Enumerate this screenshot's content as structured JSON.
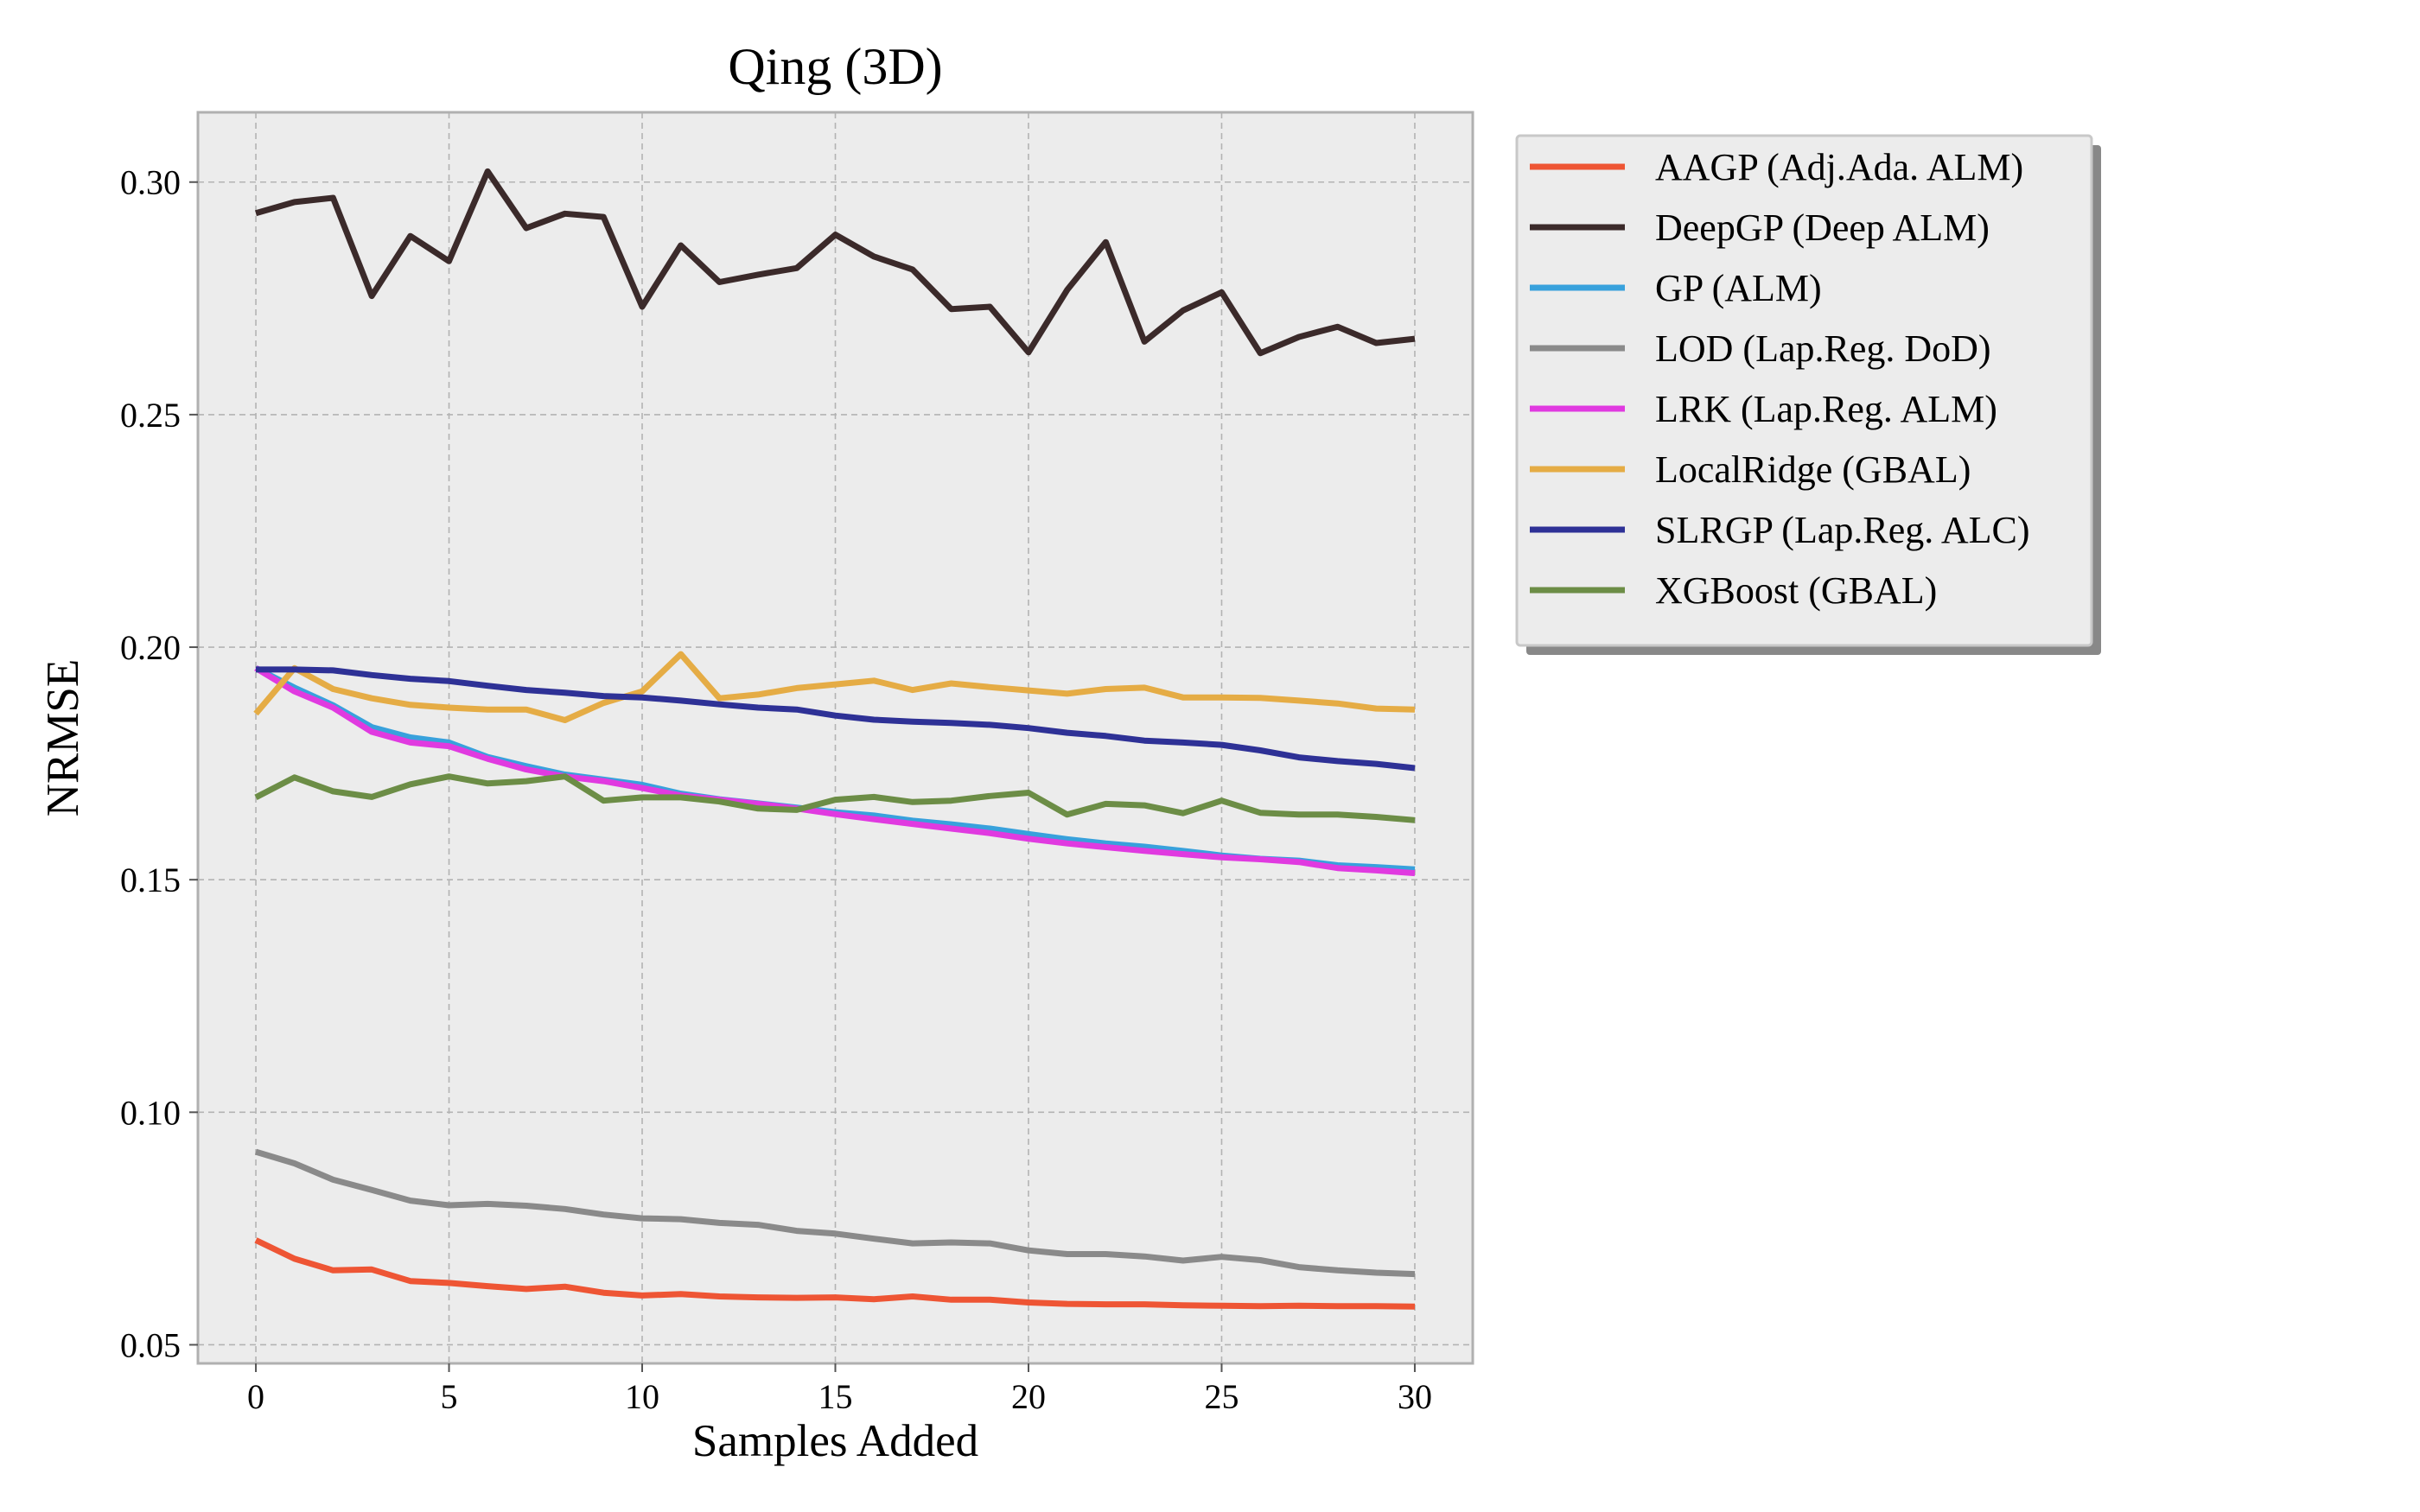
{
  "chart_data": {
    "type": "line",
    "title": "Qing (3D)",
    "xlabel": "Samples Added",
    "ylabel": "NRMSE",
    "xlim": [
      -1.5,
      31.5
    ],
    "ylim": [
      0.046,
      0.315
    ],
    "xticks": [
      0,
      5,
      10,
      15,
      20,
      25,
      30
    ],
    "yticks": [
      0.05,
      0.1,
      0.15,
      0.2,
      0.25,
      0.3
    ],
    "xtick_labels": [
      "0",
      "5",
      "10",
      "15",
      "20",
      "25",
      "30"
    ],
    "ytick_labels": [
      "0.05",
      "0.10",
      "0.15",
      "0.20",
      "0.25",
      "0.30"
    ],
    "grid": true,
    "legend_position": "outside-right-top",
    "x": [
      0,
      1,
      2,
      3,
      4,
      5,
      6,
      7,
      8,
      9,
      10,
      11,
      12,
      13,
      14,
      15,
      16,
      17,
      18,
      19,
      20,
      21,
      22,
      23,
      24,
      25,
      26,
      27,
      28,
      29,
      30
    ],
    "series": [
      {
        "name": "AAGP (Adj.Ada. ALM)",
        "color": "#ee5534",
        "values": [
          0.0725,
          0.0685,
          0.066,
          0.0662,
          0.0637,
          0.0633,
          0.0626,
          0.062,
          0.0625,
          0.0612,
          0.0606,
          0.0609,
          0.0604,
          0.0602,
          0.0601,
          0.0602,
          0.0598,
          0.0604,
          0.0597,
          0.0597,
          0.0591,
          0.0588,
          0.0587,
          0.0587,
          0.0585,
          0.0584,
          0.0583,
          0.0584,
          0.0583,
          0.0583,
          0.0582
        ]
      },
      {
        "name": "DeepGP (Deep ALM)",
        "color": "#3b2a2a",
        "values": [
          0.2933,
          0.2957,
          0.2966,
          0.2755,
          0.2884,
          0.283,
          0.3023,
          0.2901,
          0.2932,
          0.2925,
          0.2732,
          0.2864,
          0.2785,
          0.2801,
          0.2815,
          0.2887,
          0.284,
          0.2812,
          0.2727,
          0.2732,
          0.2634,
          0.2768,
          0.2871,
          0.2657,
          0.2724,
          0.2763,
          0.2632,
          0.2667,
          0.2689,
          0.2654,
          0.2663
        ]
      },
      {
        "name": "GP (ALM)",
        "color": "#38a1dc",
        "values": [
          0.1955,
          0.1913,
          0.1875,
          0.1828,
          0.1806,
          0.1795,
          0.1764,
          0.1744,
          0.1726,
          0.1715,
          0.1704,
          0.1685,
          0.1673,
          0.1664,
          0.1655,
          0.1645,
          0.1638,
          0.1627,
          0.1619,
          0.161,
          0.1598,
          0.1587,
          0.1578,
          0.1571,
          0.1562,
          0.1552,
          0.1545,
          0.1541,
          0.1531,
          0.1527,
          0.1522
        ]
      },
      {
        "name": "LOD (Lap.Reg. DoD)",
        "color": "#8a8a8a",
        "values": [
          0.0915,
          0.089,
          0.0855,
          0.0833,
          0.081,
          0.08,
          0.0803,
          0.0799,
          0.0792,
          0.078,
          0.0772,
          0.077,
          0.0762,
          0.0758,
          0.0745,
          0.0739,
          0.0728,
          0.0718,
          0.072,
          0.0718,
          0.0703,
          0.0695,
          0.0695,
          0.069,
          0.0681,
          0.0689,
          0.0682,
          0.0667,
          0.066,
          0.0655,
          0.0652
        ]
      },
      {
        "name": "LRK (Lap.Reg. ALM)",
        "color": "#e03ae0",
        "values": [
          0.1955,
          0.1905,
          0.187,
          0.1818,
          0.1795,
          0.1787,
          0.176,
          0.1737,
          0.1722,
          0.1712,
          0.1697,
          0.1681,
          0.1672,
          0.1663,
          0.1653,
          0.1641,
          0.163,
          0.162,
          0.161,
          0.16,
          0.1588,
          0.1578,
          0.157,
          0.1562,
          0.1555,
          0.1548,
          0.1544,
          0.1538,
          0.1525,
          0.152,
          0.1514
        ]
      },
      {
        "name": "LocalRidge (GBAL)",
        "color": "#e5ac45",
        "values": [
          0.1857,
          0.1955,
          0.191,
          0.189,
          0.1876,
          0.187,
          0.1866,
          0.1866,
          0.1843,
          0.188,
          0.1905,
          0.1985,
          0.189,
          0.1898,
          0.1912,
          0.192,
          0.1928,
          0.1908,
          0.1922,
          0.1914,
          0.1907,
          0.19,
          0.191,
          0.1913,
          0.1892,
          0.1892,
          0.1891,
          0.1885,
          0.1879,
          0.1868,
          0.1866
        ]
      },
      {
        "name": "SLRGP (Lap.Reg. ALC)",
        "color": "#2e3196",
        "values": [
          0.1952,
          0.1952,
          0.195,
          0.194,
          0.1932,
          0.1927,
          0.1917,
          0.1908,
          0.1902,
          0.1895,
          0.1892,
          0.1885,
          0.1877,
          0.187,
          0.1866,
          0.1853,
          0.1844,
          0.184,
          0.1837,
          0.1833,
          0.1826,
          0.1816,
          0.1809,
          0.1799,
          0.1795,
          0.179,
          0.1778,
          0.1763,
          0.1755,
          0.1749,
          0.174
        ]
      },
      {
        "name": "XGBoost (GBAL)",
        "color": "#6c8d46",
        "values": [
          0.1677,
          0.172,
          0.169,
          0.1678,
          0.1705,
          0.1722,
          0.1707,
          0.1712,
          0.1722,
          0.167,
          0.1677,
          0.1677,
          0.1668,
          0.1653,
          0.165,
          0.1672,
          0.1678,
          0.1667,
          0.167,
          0.168,
          0.1687,
          0.164,
          0.1663,
          0.166,
          0.1643,
          0.167,
          0.1644,
          0.164,
          0.164,
          0.1635,
          0.1628
        ]
      }
    ]
  }
}
